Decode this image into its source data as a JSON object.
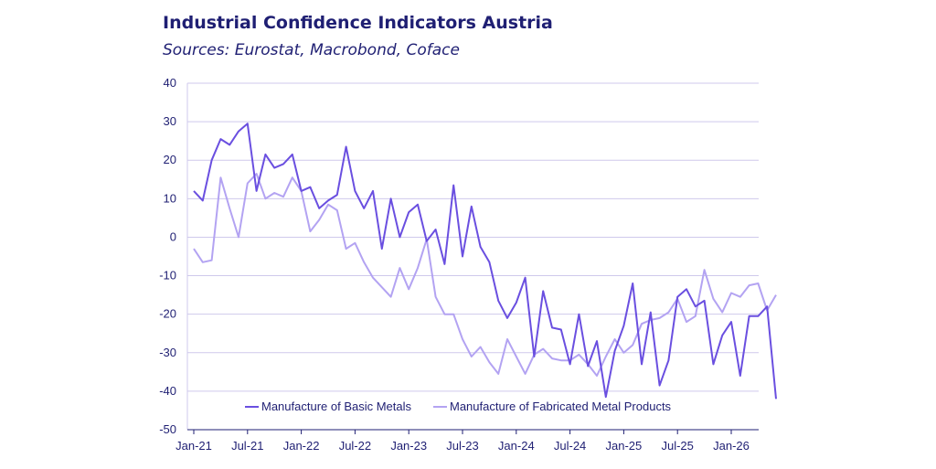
{
  "title": "Industrial Confidence Indicators Austria",
  "subtitle": "Sources: Eurostat, Macrobond, Coface",
  "colors": {
    "basic": "#6a4fe0",
    "fabricated": "#b3a3f2",
    "grid": "#cfc9ec",
    "axis": "#1f1f73"
  },
  "chart_data": {
    "type": "line",
    "x_start": "2021-01",
    "x_step": "month",
    "xticks": [
      {
        "label": "Jan-21",
        "index": 0
      },
      {
        "label": "Jul-21",
        "index": 6
      },
      {
        "label": "Jan-22",
        "index": 12
      },
      {
        "label": "Jul-22",
        "index": 18
      },
      {
        "label": "Jan-23",
        "index": 24
      },
      {
        "label": "Jul-23",
        "index": 30
      },
      {
        "label": "Jan-24",
        "index": 36
      },
      {
        "label": "Jul-24",
        "index": 42
      },
      {
        "label": "Jan-25",
        "index": 48
      },
      {
        "label": "Jul-25",
        "index": 54
      },
      {
        "label": "Jan-26",
        "index": 60
      }
    ],
    "x_count": 66,
    "ylim": [
      -50,
      40
    ],
    "yticks": [
      40,
      30,
      20,
      10,
      0,
      -10,
      -20,
      -30,
      -40,
      -50
    ],
    "grid": true,
    "legend_position": "bottom",
    "series": [
      {
        "name": "Manufacture of Basic Metals",
        "values": [
          12,
          9.5,
          20,
          25.5,
          24,
          27.5,
          29.5,
          12,
          21.5,
          18,
          19,
          21.5,
          12,
          13,
          7.5,
          9.5,
          11,
          23.5,
          12,
          7.5,
          12,
          -3,
          10,
          0,
          6.5,
          8.5,
          -1,
          2,
          -7,
          13.5,
          -5,
          8,
          -2.5,
          -6.5,
          -16.5,
          -21,
          -17,
          -10.5,
          -31,
          -14,
          -23.5,
          -24,
          -33,
          -20,
          -33.5,
          -27,
          -41.5,
          -29.5,
          -23,
          -12,
          -33,
          -19.5,
          -38.5,
          -32,
          -15.5,
          -13.5,
          -18,
          -16.5,
          -33,
          -25.5,
          -22,
          -36,
          -20.5,
          -20.5,
          -18,
          -42
        ]
      },
      {
        "name": "Manufacture of Fabricated Metal Products",
        "values": [
          -3,
          -6.5,
          -6,
          15.5,
          7.5,
          0,
          14,
          16.5,
          10,
          11.5,
          10.5,
          15.5,
          12,
          1.5,
          4.5,
          8.5,
          7,
          -3,
          -1.5,
          -6.5,
          -10.5,
          -13,
          -15.5,
          -8,
          -13.5,
          -8,
          -0.5,
          -15.5,
          -20,
          -20,
          -26.5,
          -31,
          -28.5,
          -32.5,
          -35.5,
          -26.5,
          -31,
          -35.5,
          -30.5,
          -29,
          -31.5,
          -32,
          -32,
          -30.5,
          -33,
          -36,
          -31,
          -26.5,
          -30,
          -28,
          -22.5,
          -21.5,
          -21,
          -19.5,
          -16,
          -22,
          -20.5,
          -8.5,
          -16,
          -19.5,
          -14.5,
          -15.5,
          -12.5,
          -12,
          -19,
          -15
        ]
      }
    ]
  }
}
